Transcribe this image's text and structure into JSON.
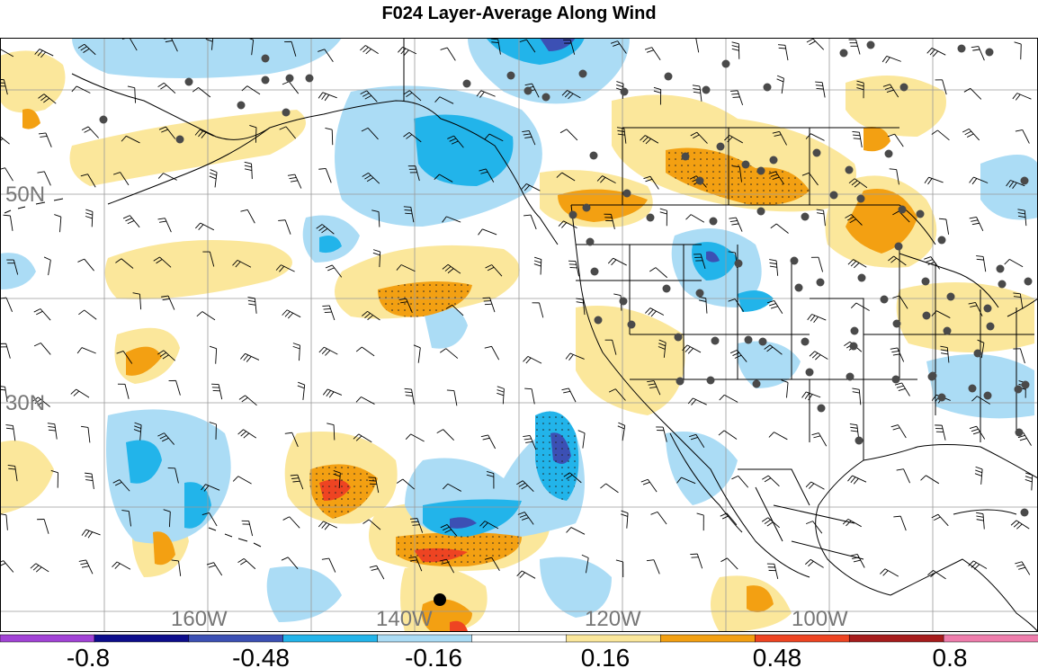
{
  "title": "F024 Layer-Average Along Wind",
  "map": {
    "lat_labels": [
      "50N",
      "30N"
    ],
    "lon_labels": [
      "160W",
      "140W",
      "120W",
      "100W"
    ],
    "fill_colors": {
      "neg_strong": "#3c50b4",
      "neg_mid": "#22b4ea",
      "neg_weak": "#abdcf5",
      "pos_weak": "#fbe79b",
      "pos_mid": "#f3a012",
      "pos_strong": "#ee4422",
      "land_line": "#000000",
      "station_dot": "#4a4a4a",
      "grid_line": "#9a9a9a",
      "label_gray": "#777777"
    },
    "stations": [
      [
        295,
        65
      ],
      [
        210,
        91
      ],
      [
        115,
        133
      ],
      [
        200,
        155
      ],
      [
        268,
        117
      ],
      [
        322,
        87
      ],
      [
        295,
        89
      ],
      [
        344,
        87
      ],
      [
        318,
        125
      ],
      [
        519,
        93
      ],
      [
        587,
        101
      ],
      [
        568,
        84
      ],
      [
        607,
        108
      ],
      [
        648,
        82
      ],
      [
        694,
        102
      ],
      [
        785,
        100
      ],
      [
        743,
        85
      ],
      [
        807,
        71
      ],
      [
        853,
        97
      ],
      [
        968,
        50
      ],
      [
        1069,
        54
      ],
      [
        1100,
        58
      ],
      [
        1005,
        97
      ],
      [
        938,
        59
      ],
      [
        660,
        173
      ],
      [
        697,
        215
      ],
      [
        778,
        201
      ],
      [
        762,
        174
      ],
      [
        801,
        163
      ],
      [
        829,
        183
      ],
      [
        846,
        190
      ],
      [
        860,
        178
      ],
      [
        908,
        170
      ],
      [
        944,
        189
      ],
      [
        927,
        217
      ],
      [
        988,
        171
      ],
      [
        957,
        221
      ],
      [
        1003,
        233
      ],
      [
        1023,
        238
      ],
      [
        1139,
        201
      ],
      [
        637,
        239
      ],
      [
        652,
        231
      ],
      [
        656,
        269
      ],
      [
        723,
        242
      ],
      [
        793,
        246
      ],
      [
        846,
        235
      ],
      [
        895,
        241
      ],
      [
        999,
        274
      ],
      [
        1047,
        267
      ],
      [
        1112,
        299
      ],
      [
        1114,
        316
      ],
      [
        1143,
        313
      ],
      [
        661,
        302
      ],
      [
        693,
        335
      ],
      [
        702,
        361
      ],
      [
        741,
        321
      ],
      [
        778,
        326
      ],
      [
        821,
        293
      ],
      [
        883,
        290
      ],
      [
        888,
        320
      ],
      [
        912,
        314
      ],
      [
        958,
        309
      ],
      [
        983,
        333
      ],
      [
        1029,
        313
      ],
      [
        1057,
        330
      ],
      [
        1098,
        343
      ],
      [
        1030,
        351
      ],
      [
        665,
        356
      ],
      [
        754,
        375
      ],
      [
        795,
        379
      ],
      [
        832,
        378
      ],
      [
        848,
        380
      ],
      [
        895,
        380
      ],
      [
        950,
        368
      ],
      [
        997,
        360
      ],
      [
        1053,
        368
      ],
      [
        1101,
        363
      ],
      [
        1087,
        393
      ],
      [
        756,
        424
      ],
      [
        790,
        423
      ],
      [
        841,
        427
      ],
      [
        900,
        414
      ],
      [
        949,
        385
      ],
      [
        945,
        419
      ],
      [
        996,
        422
      ],
      [
        1037,
        418
      ],
      [
        1047,
        442
      ],
      [
        1098,
        440
      ],
      [
        1081,
        432
      ],
      [
        1132,
        433
      ],
      [
        1036,
        419
      ],
      [
        1140,
        428
      ],
      [
        913,
        454
      ],
      [
        955,
        490
      ],
      [
        1133,
        481
      ],
      [
        1139,
        570
      ]
    ],
    "special_marker": [
      489,
      667
    ]
  },
  "colorbar": {
    "tick_labels": [
      "-0.8",
      "-0.48",
      "-0.16",
      "0.16",
      "0.48",
      "0.8"
    ],
    "colors": [
      "#a243d6",
      "#0d0d8c",
      "#3c50b4",
      "#22b4ea",
      "#abdcf5",
      "#ffffff",
      "#fbe79b",
      "#f3a012",
      "#ee4422",
      "#a61c1c",
      "#ee7dac"
    ]
  }
}
